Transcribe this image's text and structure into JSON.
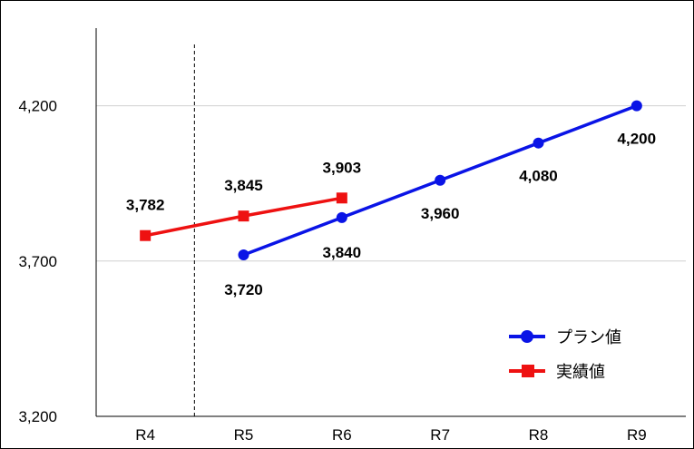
{
  "chart_data": {
    "type": "line",
    "categories": [
      "R4",
      "R5",
      "R6",
      "R7",
      "R8",
      "R9"
    ],
    "yticks": [
      "3,200",
      "3,700",
      "4,200"
    ],
    "ylim": [
      3200,
      4450
    ],
    "grid": true,
    "legend_position": "bottom-right",
    "divider_between": [
      "R4",
      "R5"
    ],
    "series": [
      {
        "name": "プラン値",
        "color": "#0a14e6",
        "marker": "circle",
        "points": [
          {
            "x": "R5",
            "y": 3720,
            "label": "3,720"
          },
          {
            "x": "R6",
            "y": 3840,
            "label": "3,840"
          },
          {
            "x": "R7",
            "y": 3960,
            "label": "3,960"
          },
          {
            "x": "R8",
            "y": 4080,
            "label": "4,080"
          },
          {
            "x": "R9",
            "y": 4200,
            "label": "4,200"
          }
        ]
      },
      {
        "name": "実績値",
        "color": "#ee1111",
        "marker": "square",
        "points": [
          {
            "x": "R4",
            "y": 3782,
            "label": "3,782"
          },
          {
            "x": "R5",
            "y": 3845,
            "label": "3,845"
          },
          {
            "x": "R6",
            "y": 3903,
            "label": "3,903"
          }
        ]
      }
    ]
  }
}
